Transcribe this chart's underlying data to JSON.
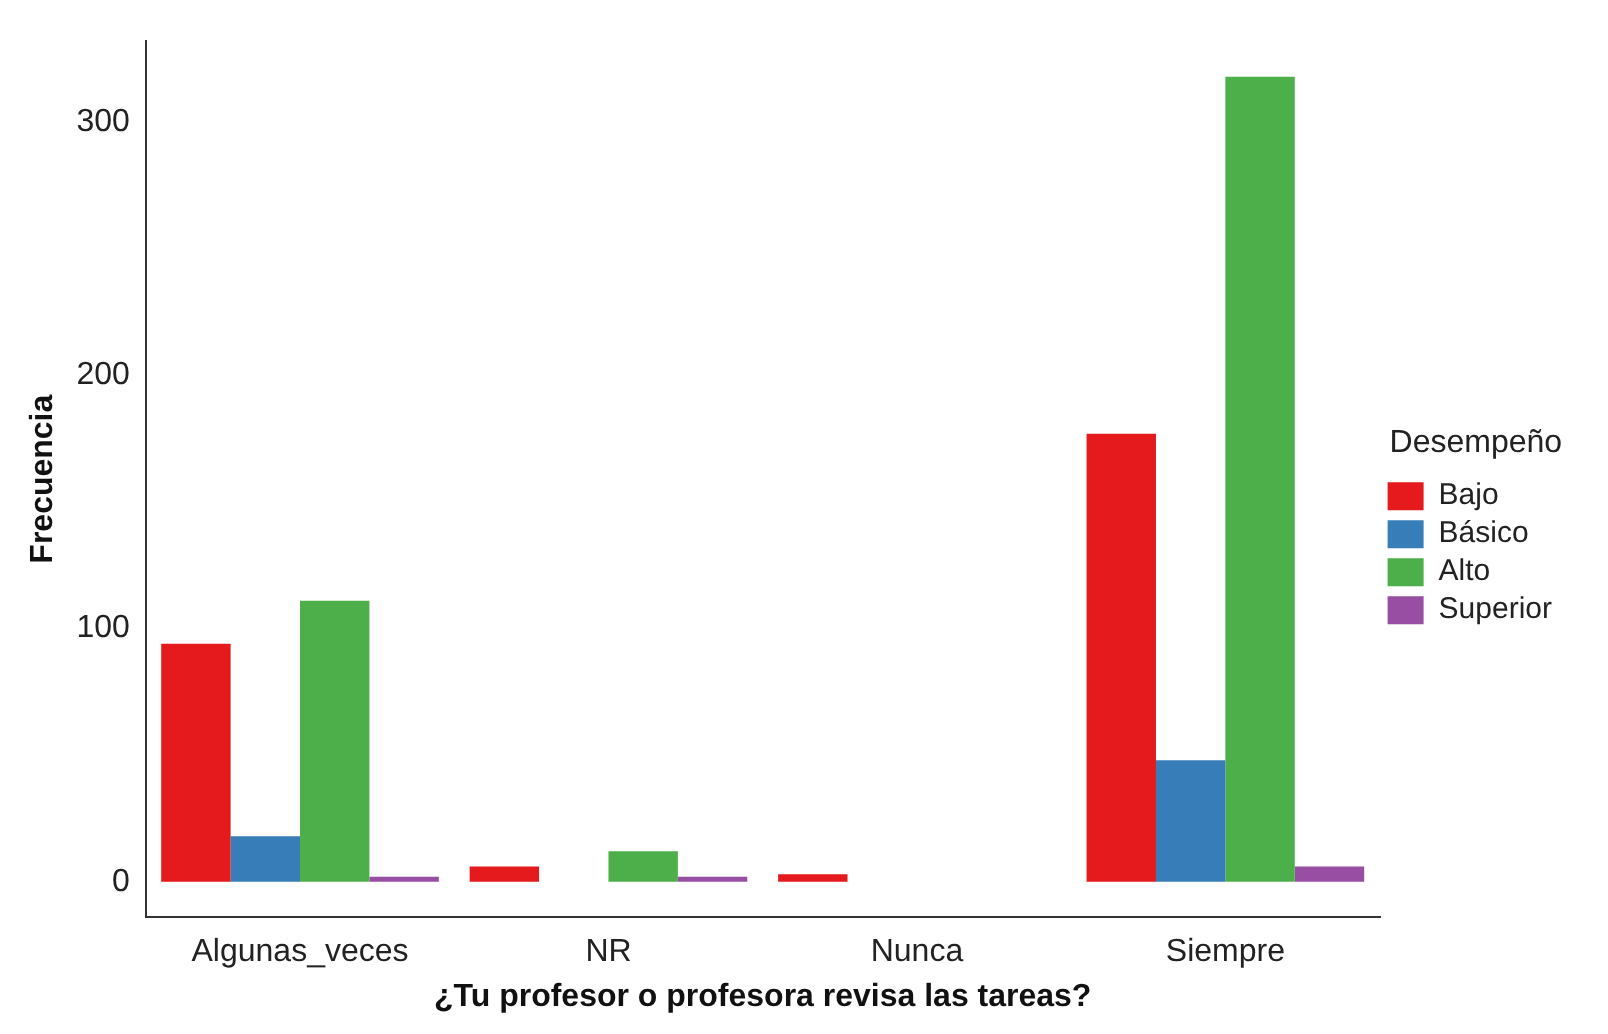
{
  "chart_data": {
    "type": "bar",
    "xlabel": "¿Tu profesor o profesora revisa las tareas?",
    "ylabel": "Frecuencia",
    "legend_title": "Desempeño",
    "categories": [
      "Algunas_veces",
      "NR",
      "Nunca",
      "Siempre"
    ],
    "series": [
      {
        "name": "Bajo",
        "color": "#e41a1c",
        "values": [
          94,
          6,
          3,
          177
        ]
      },
      {
        "name": "Básico",
        "color": "#377eb8",
        "values": [
          18,
          0,
          0,
          48
        ]
      },
      {
        "name": "Alto",
        "color": "#4daf4a",
        "values": [
          111,
          12,
          0,
          318
        ]
      },
      {
        "name": "Superior",
        "color": "#984ea3",
        "values": [
          2,
          2,
          0,
          6
        ]
      }
    ],
    "ylim": [
      -14,
      332
    ],
    "yticks": [
      0,
      100,
      200,
      300
    ],
    "grid": false,
    "legend": "right"
  }
}
